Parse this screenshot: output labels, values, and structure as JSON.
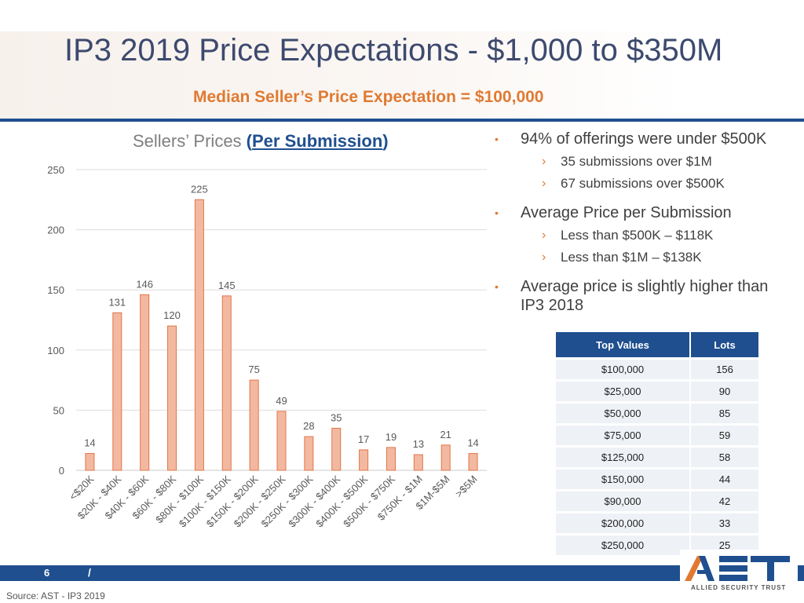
{
  "header": {
    "title": "IP3 2019 Price Expectations - $1,000 to $350M",
    "subtitle": "Median Seller’s Price Expectation = $100,000"
  },
  "chart_title": {
    "lead": "Sellers’ Prices ",
    "open": "(",
    "emph": "Per Submission",
    "close": ")"
  },
  "chart_data": {
    "type": "bar",
    "title": "Sellers’ Prices (Per Submission)",
    "categories": [
      "<$20K",
      "$20K - $40K",
      "$40K - $60K",
      "$60K - $80K",
      "$80K - $100K",
      "$100K - $150K",
      "$150K - $200K",
      "$200K - $250K",
      "$250K - $300K",
      "$300K - $400K",
      "$400K - $500K",
      "$500K - $750K",
      "$750K - $1M",
      "$1M-$5M",
      ">$5M"
    ],
    "values": [
      14,
      131,
      146,
      120,
      225,
      145,
      75,
      49,
      28,
      35,
      17,
      19,
      13,
      21,
      14
    ],
    "ylim": [
      0,
      250
    ],
    "yticks": [
      0,
      50,
      100,
      150,
      200,
      250
    ],
    "grid": true,
    "bar_color": "#f3b9a0",
    "bar_edge": "#e0764a"
  },
  "bullets": {
    "b1": "94% of offerings were under $500K",
    "b1a": "35 submissions over $1M",
    "b1b": "67 submissions over $500K",
    "b2": "Average Price per Submission",
    "b2a": "Less than $500K – $118K",
    "b2b": "Less than $1M – $138K",
    "b3": "Average price is slightly higher than IP3 2018"
  },
  "table": {
    "headers": [
      "Top Values",
      "Lots"
    ],
    "rows": [
      [
        "$100,000",
        "156"
      ],
      [
        "$25,000",
        "90"
      ],
      [
        "$50,000",
        "85"
      ],
      [
        "$75,000",
        "59"
      ],
      [
        "$125,000",
        "58"
      ],
      [
        "$150,000",
        "44"
      ],
      [
        "$90,000",
        "42"
      ],
      [
        "$200,000",
        "33"
      ],
      [
        "$250,000",
        "25"
      ]
    ]
  },
  "footer": {
    "page": "6",
    "sep": "/",
    "source": "Source: AST - IP3 2019"
  },
  "logo": {
    "text": "AST",
    "name": "ALLIED SECURITY TRUST"
  },
  "colors": {
    "brand_blue": "#1f4f8f",
    "accent_orange": "#e07a32",
    "title_navy": "#3d4a6e"
  }
}
